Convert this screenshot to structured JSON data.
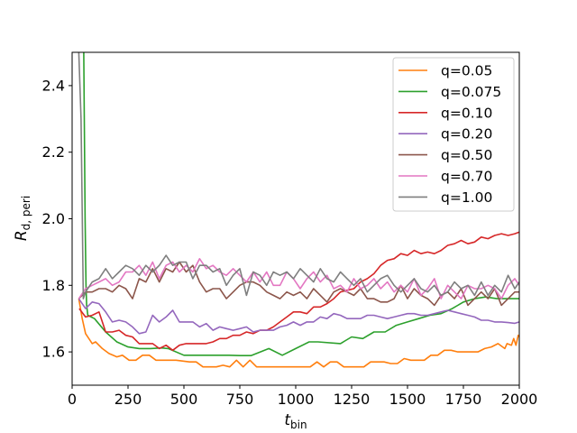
{
  "chart_data": {
    "type": "line",
    "title": "",
    "xlabel_main": "t",
    "xlabel_sub": "bin",
    "ylabel_main": "R",
    "ylabel_sub": "d, peri",
    "xlim": [
      0,
      2000
    ],
    "ylim": [
      1.5,
      2.5
    ],
    "xticks": [
      0,
      250,
      500,
      750,
      1000,
      1250,
      1500,
      1750,
      2000
    ],
    "yticks": [
      1.6,
      1.8,
      2.0,
      2.2,
      2.4
    ],
    "ytick_labels": [
      "1.6",
      "1.8",
      "2.0",
      "2.2",
      "2.4"
    ],
    "grid": false,
    "legend_position": "top-right",
    "series": [
      {
        "name": "q=0.05",
        "color": "#ff7f0e",
        "x": [
          30,
          45,
          60,
          90,
          105,
          135,
          165,
          200,
          225,
          255,
          285,
          315,
          345,
          375,
          435,
          465,
          525,
          555,
          585,
          645,
          675,
          705,
          735,
          765,
          795,
          825,
          885,
          915,
          1005,
          1035,
          1065,
          1095,
          1125,
          1155,
          1185,
          1215,
          1245,
          1275,
          1305,
          1335,
          1365,
          1395,
          1425,
          1455,
          1485,
          1515,
          1545,
          1575,
          1605,
          1635,
          1665,
          1695,
          1725,
          1755,
          1785,
          1815,
          1845,
          1875,
          1905,
          1935,
          1945,
          1965,
          1975,
          1985,
          1995,
          2000
        ],
        "y": [
          1.76,
          1.7,
          1.655,
          1.625,
          1.63,
          1.61,
          1.595,
          1.585,
          1.59,
          1.575,
          1.575,
          1.59,
          1.59,
          1.575,
          1.575,
          1.575,
          1.57,
          1.57,
          1.555,
          1.555,
          1.56,
          1.555,
          1.575,
          1.555,
          1.575,
          1.555,
          1.555,
          1.555,
          1.555,
          1.555,
          1.555,
          1.57,
          1.555,
          1.57,
          1.57,
          1.555,
          1.555,
          1.555,
          1.555,
          1.57,
          1.57,
          1.57,
          1.565,
          1.565,
          1.58,
          1.575,
          1.575,
          1.575,
          1.59,
          1.59,
          1.605,
          1.605,
          1.6,
          1.6,
          1.6,
          1.6,
          1.61,
          1.615,
          1.625,
          1.61,
          1.625,
          1.62,
          1.64,
          1.62,
          1.65,
          1.645
        ]
      },
      {
        "name": "q=0.075",
        "color": "#2ca02c",
        "x": [
          52,
          58,
          62,
          65,
          70,
          100,
          150,
          200,
          250,
          300,
          350,
          400,
          430,
          500,
          550,
          600,
          650,
          700,
          750,
          800,
          880,
          940,
          1000,
          1060,
          1100,
          1200,
          1250,
          1300,
          1350,
          1400,
          1450,
          1500,
          1550,
          1600,
          1650,
          1700,
          1750,
          1800,
          1850,
          1900,
          1950,
          2000
        ],
        "y": [
          2.5,
          2.0,
          1.8,
          1.74,
          1.71,
          1.7,
          1.66,
          1.63,
          1.615,
          1.61,
          1.61,
          1.612,
          1.61,
          1.59,
          1.59,
          1.59,
          1.59,
          1.59,
          1.589,
          1.589,
          1.61,
          1.59,
          1.61,
          1.63,
          1.63,
          1.625,
          1.645,
          1.64,
          1.66,
          1.66,
          1.68,
          1.69,
          1.7,
          1.71,
          1.715,
          1.73,
          1.75,
          1.76,
          1.765,
          1.76,
          1.76,
          1.76
        ]
      },
      {
        "name": "q=0.10",
        "color": "#d62728",
        "x": [
          32,
          60,
          90,
          120,
          150,
          180,
          210,
          240,
          270,
          300,
          330,
          360,
          390,
          420,
          450,
          480,
          510,
          540,
          570,
          600,
          630,
          660,
          690,
          720,
          750,
          780,
          810,
          840,
          870,
          900,
          930,
          960,
          990,
          1020,
          1050,
          1080,
          1110,
          1140,
          1170,
          1200,
          1230,
          1260,
          1290,
          1320,
          1350,
          1380,
          1410,
          1440,
          1470,
          1500,
          1530,
          1560,
          1590,
          1620,
          1650,
          1680,
          1710,
          1740,
          1770,
          1800,
          1830,
          1860,
          1890,
          1920,
          1950,
          1980,
          2000
        ],
        "y": [
          1.73,
          1.705,
          1.71,
          1.72,
          1.66,
          1.66,
          1.665,
          1.65,
          1.645,
          1.625,
          1.625,
          1.625,
          1.61,
          1.62,
          1.605,
          1.62,
          1.625,
          1.625,
          1.625,
          1.625,
          1.63,
          1.64,
          1.64,
          1.65,
          1.65,
          1.66,
          1.655,
          1.665,
          1.665,
          1.675,
          1.69,
          1.705,
          1.72,
          1.72,
          1.715,
          1.735,
          1.735,
          1.745,
          1.76,
          1.78,
          1.785,
          1.79,
          1.81,
          1.82,
          1.835,
          1.86,
          1.875,
          1.88,
          1.895,
          1.89,
          1.905,
          1.895,
          1.9,
          1.895,
          1.905,
          1.92,
          1.925,
          1.935,
          1.925,
          1.93,
          1.945,
          1.94,
          1.95,
          1.955,
          1.95,
          1.955,
          1.96
        ]
      },
      {
        "name": "q=0.20",
        "color": "#9467bd",
        "x": [
          30,
          60,
          90,
          120,
          150,
          180,
          210,
          240,
          270,
          300,
          330,
          360,
          390,
          420,
          450,
          480,
          510,
          540,
          570,
          600,
          630,
          660,
          690,
          720,
          750,
          780,
          810,
          840,
          870,
          900,
          930,
          960,
          990,
          1020,
          1050,
          1080,
          1110,
          1140,
          1170,
          1200,
          1230,
          1260,
          1290,
          1320,
          1350,
          1380,
          1410,
          1440,
          1470,
          1500,
          1530,
          1560,
          1590,
          1620,
          1650,
          1680,
          1710,
          1740,
          1770,
          1800,
          1830,
          1860,
          1890,
          1920,
          1950,
          1980,
          2000
        ],
        "y": [
          1.76,
          1.73,
          1.75,
          1.745,
          1.72,
          1.69,
          1.695,
          1.69,
          1.675,
          1.655,
          1.66,
          1.71,
          1.69,
          1.705,
          1.725,
          1.69,
          1.69,
          1.69,
          1.675,
          1.685,
          1.665,
          1.675,
          1.67,
          1.665,
          1.67,
          1.675,
          1.66,
          1.665,
          1.665,
          1.665,
          1.675,
          1.68,
          1.69,
          1.68,
          1.69,
          1.69,
          1.705,
          1.7,
          1.715,
          1.71,
          1.7,
          1.7,
          1.7,
          1.71,
          1.71,
          1.705,
          1.7,
          1.705,
          1.71,
          1.715,
          1.715,
          1.71,
          1.71,
          1.715,
          1.72,
          1.725,
          1.72,
          1.715,
          1.71,
          1.705,
          1.695,
          1.695,
          1.69,
          1.69,
          1.688,
          1.686,
          1.69
        ]
      },
      {
        "name": "q=0.50",
        "color": "#8c564b",
        "x": [
          30,
          60,
          90,
          120,
          150,
          180,
          210,
          240,
          270,
          300,
          330,
          360,
          390,
          420,
          450,
          480,
          510,
          540,
          570,
          600,
          630,
          660,
          690,
          720,
          750,
          780,
          810,
          840,
          870,
          900,
          930,
          960,
          990,
          1020,
          1050,
          1080,
          1110,
          1140,
          1170,
          1200,
          1230,
          1260,
          1290,
          1320,
          1350,
          1380,
          1410,
          1440,
          1470,
          1500,
          1530,
          1560,
          1590,
          1620,
          1650,
          1680,
          1710,
          1740,
          1770,
          1800,
          1830,
          1860,
          1890,
          1920,
          1950,
          1980,
          2000
        ],
        "y": [
          1.76,
          1.78,
          1.78,
          1.79,
          1.79,
          1.78,
          1.8,
          1.79,
          1.76,
          1.82,
          1.81,
          1.85,
          1.81,
          1.85,
          1.84,
          1.87,
          1.84,
          1.86,
          1.81,
          1.78,
          1.79,
          1.79,
          1.76,
          1.78,
          1.8,
          1.81,
          1.81,
          1.8,
          1.78,
          1.77,
          1.76,
          1.78,
          1.77,
          1.78,
          1.76,
          1.79,
          1.77,
          1.75,
          1.78,
          1.79,
          1.78,
          1.77,
          1.79,
          1.76,
          1.76,
          1.75,
          1.75,
          1.76,
          1.8,
          1.76,
          1.79,
          1.77,
          1.76,
          1.74,
          1.77,
          1.78,
          1.76,
          1.79,
          1.74,
          1.76,
          1.78,
          1.76,
          1.79,
          1.74,
          1.76,
          1.78,
          1.78
        ]
      },
      {
        "name": "q=0.70",
        "color": "#e377c2",
        "x": [
          30,
          60,
          90,
          120,
          150,
          180,
          210,
          240,
          270,
          300,
          330,
          360,
          390,
          420,
          450,
          480,
          510,
          540,
          570,
          600,
          630,
          660,
          690,
          720,
          750,
          780,
          810,
          840,
          870,
          900,
          930,
          960,
          990,
          1020,
          1050,
          1080,
          1110,
          1140,
          1170,
          1200,
          1230,
          1260,
          1290,
          1320,
          1350,
          1380,
          1410,
          1440,
          1470,
          1500,
          1530,
          1560,
          1590,
          1620,
          1650,
          1680,
          1710,
          1740,
          1770,
          1800,
          1830,
          1860,
          1890,
          1920,
          1950,
          1980,
          2000
        ],
        "y": [
          1.76,
          1.79,
          1.8,
          1.81,
          1.82,
          1.8,
          1.81,
          1.84,
          1.84,
          1.86,
          1.83,
          1.87,
          1.82,
          1.86,
          1.87,
          1.84,
          1.86,
          1.84,
          1.88,
          1.85,
          1.86,
          1.84,
          1.83,
          1.85,
          1.83,
          1.81,
          1.84,
          1.81,
          1.84,
          1.8,
          1.8,
          1.84,
          1.82,
          1.79,
          1.82,
          1.84,
          1.81,
          1.83,
          1.79,
          1.8,
          1.78,
          1.82,
          1.79,
          1.8,
          1.82,
          1.79,
          1.81,
          1.78,
          1.8,
          1.78,
          1.82,
          1.77,
          1.79,
          1.82,
          1.76,
          1.8,
          1.78,
          1.76,
          1.8,
          1.79,
          1.79,
          1.8,
          1.79,
          1.76,
          1.8,
          1.82,
          1.8
        ]
      },
      {
        "name": "q=1.00",
        "color": "#7f7f7f",
        "x": [
          30,
          40,
          50,
          60,
          90,
          120,
          150,
          180,
          210,
          240,
          270,
          300,
          330,
          360,
          390,
          420,
          450,
          480,
          510,
          540,
          570,
          600,
          630,
          660,
          690,
          720,
          750,
          780,
          810,
          840,
          870,
          900,
          930,
          960,
          990,
          1020,
          1050,
          1080,
          1110,
          1140,
          1170,
          1200,
          1230,
          1260,
          1290,
          1320,
          1350,
          1380,
          1410,
          1440,
          1470,
          1500,
          1530,
          1560,
          1590,
          1620,
          1650,
          1680,
          1710,
          1740,
          1770,
          1800,
          1830,
          1860,
          1890,
          1920,
          1950,
          1980,
          2000
        ],
        "y": [
          2.5,
          2.3,
          1.76,
          1.78,
          1.81,
          1.82,
          1.85,
          1.82,
          1.84,
          1.86,
          1.85,
          1.83,
          1.86,
          1.84,
          1.86,
          1.89,
          1.86,
          1.87,
          1.87,
          1.82,
          1.86,
          1.86,
          1.84,
          1.85,
          1.8,
          1.83,
          1.85,
          1.77,
          1.84,
          1.83,
          1.8,
          1.84,
          1.83,
          1.84,
          1.82,
          1.85,
          1.83,
          1.81,
          1.85,
          1.82,
          1.81,
          1.84,
          1.82,
          1.8,
          1.82,
          1.78,
          1.8,
          1.82,
          1.83,
          1.8,
          1.78,
          1.8,
          1.82,
          1.79,
          1.78,
          1.8,
          1.77,
          1.78,
          1.81,
          1.79,
          1.8,
          1.77,
          1.81,
          1.77,
          1.8,
          1.78,
          1.83,
          1.79,
          1.81
        ]
      }
    ]
  }
}
